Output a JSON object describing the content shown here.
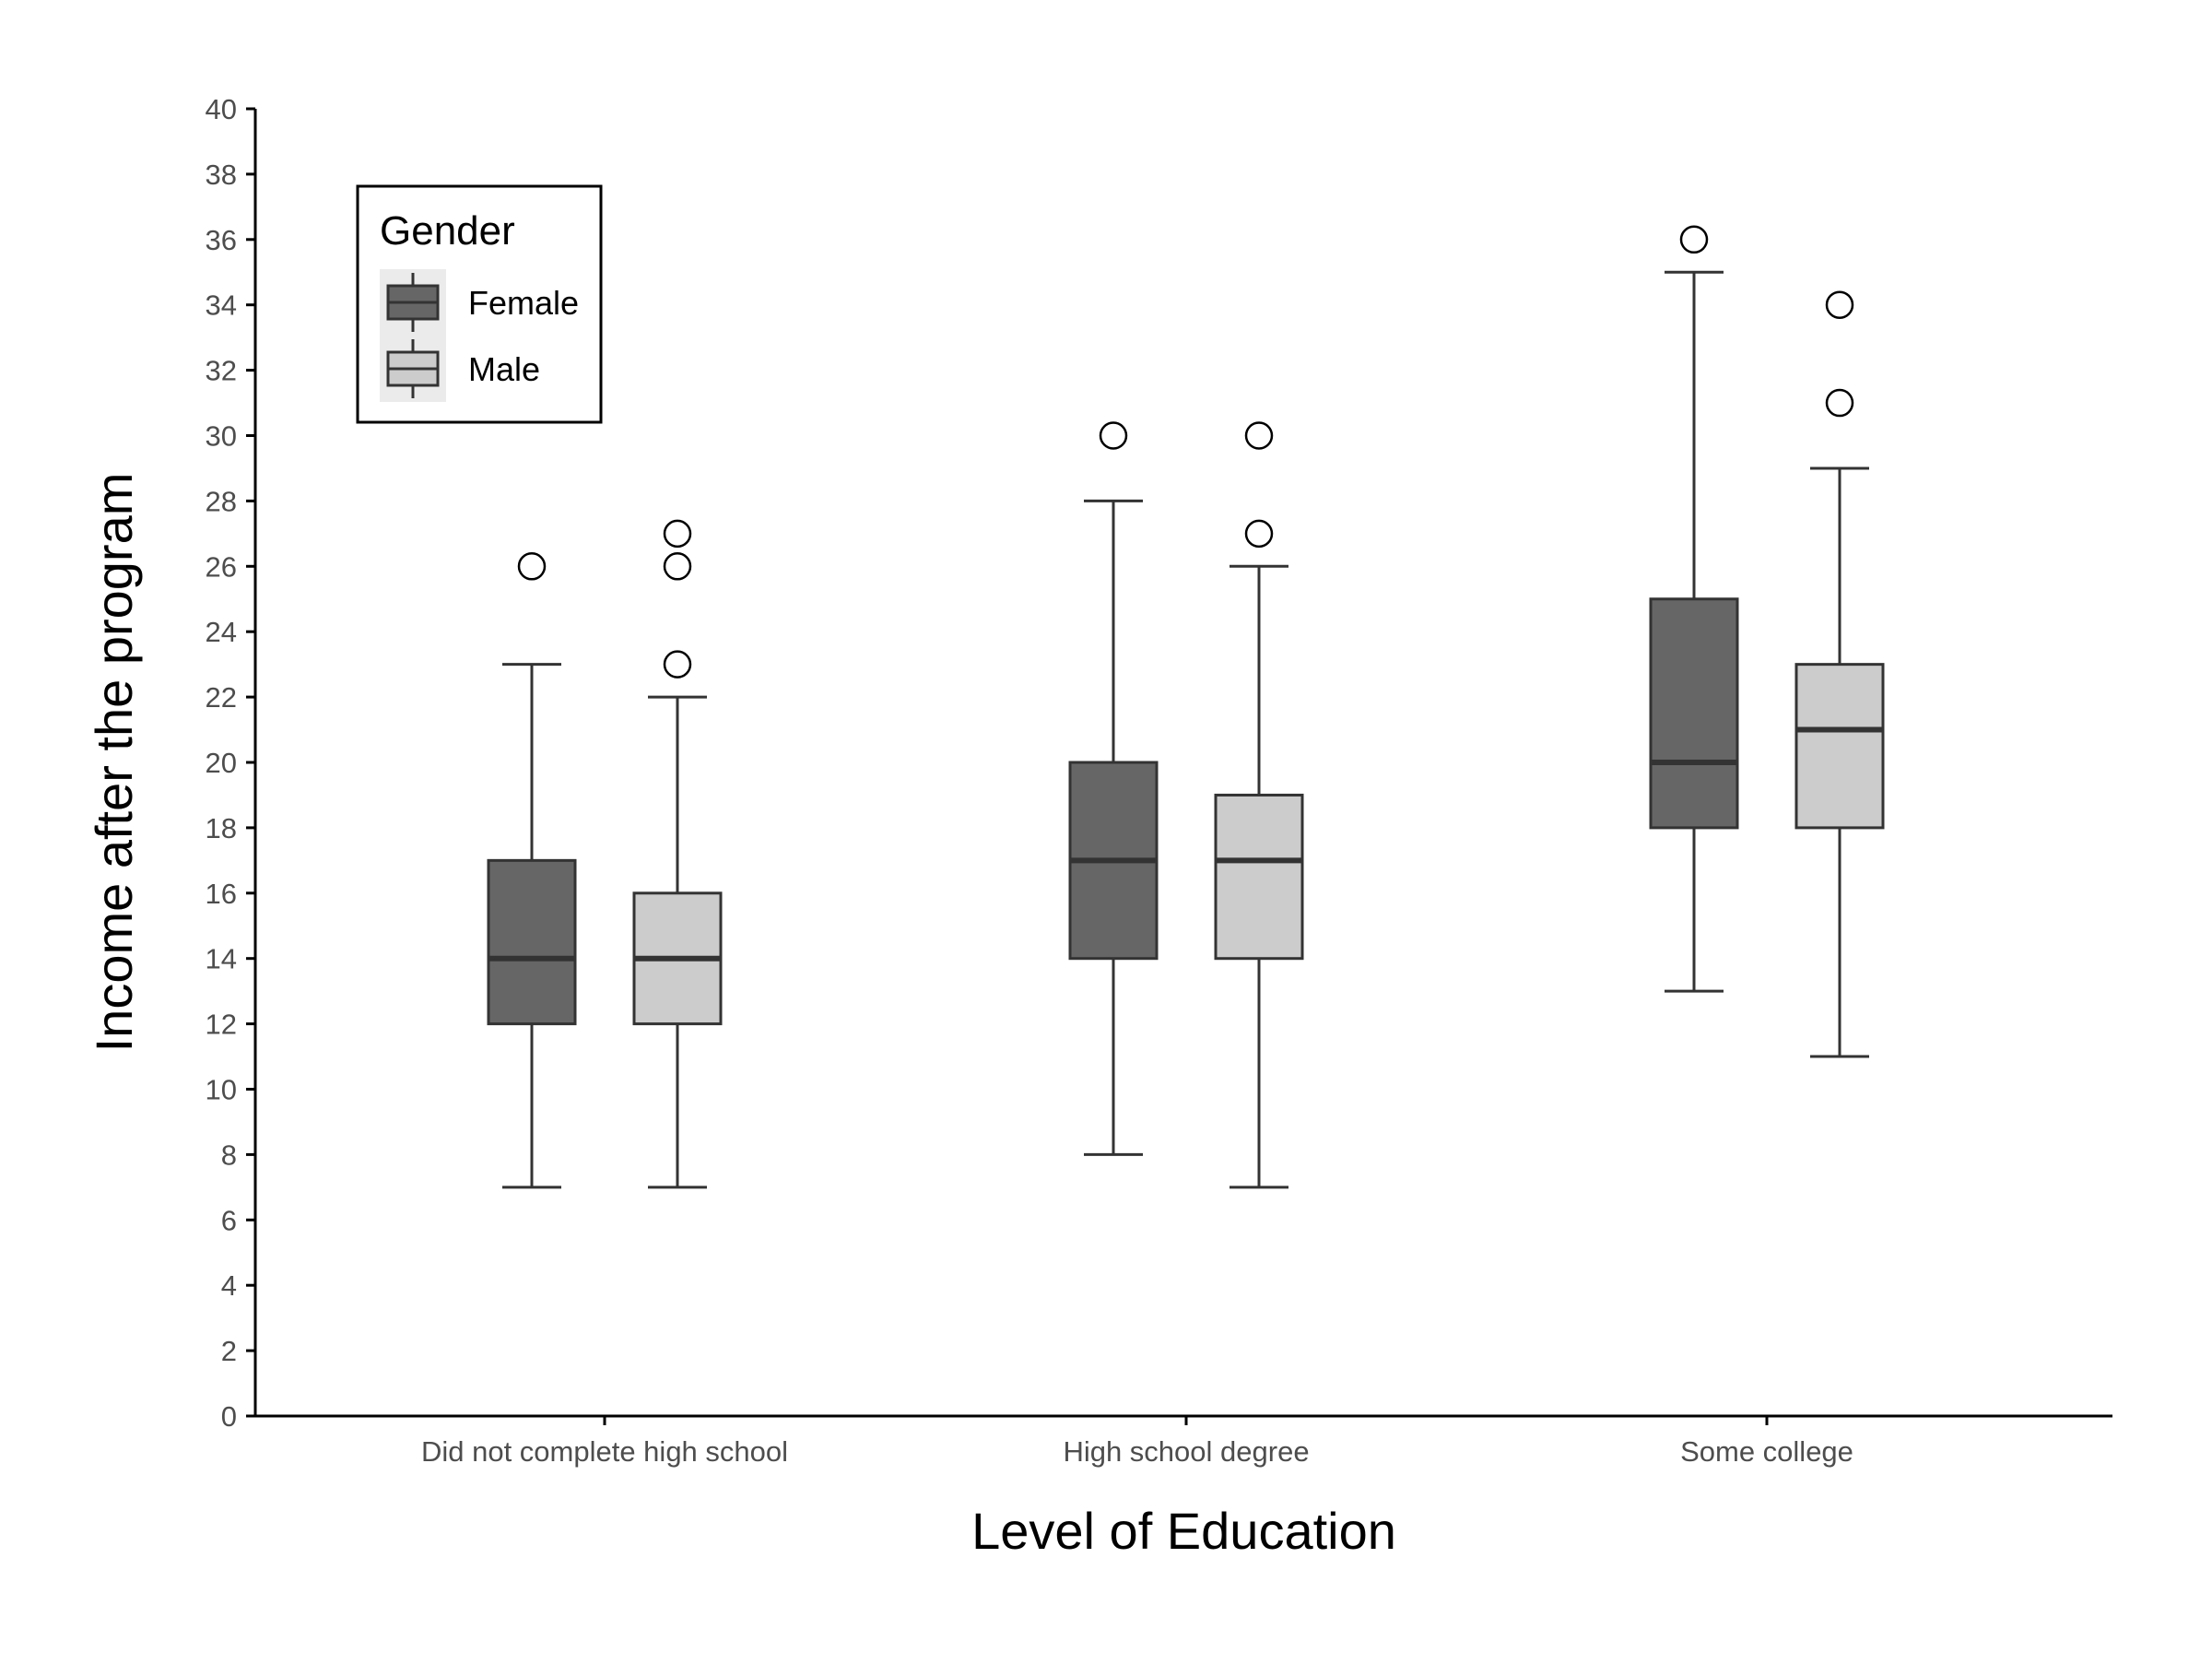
{
  "chart_data": {
    "type": "boxplot",
    "xlabel": "Level of Education",
    "ylabel": "Income after the program",
    "ylim": [
      0,
      40
    ],
    "yticks": [
      0,
      2,
      4,
      6,
      8,
      10,
      12,
      14,
      16,
      18,
      20,
      22,
      24,
      26,
      28,
      30,
      32,
      34,
      36,
      38,
      40
    ],
    "grid": false,
    "legend": {
      "title": "Gender",
      "position": "top-left",
      "entries": [
        "Female",
        "Male"
      ]
    },
    "categories": [
      "Did not complete high school",
      "High school degree",
      "Some college"
    ],
    "series": [
      {
        "name": "Female",
        "color": "#666666",
        "boxes": [
          {
            "whisker_low": 7,
            "q1": 12,
            "median": 14,
            "q3": 17,
            "whisker_high": 23,
            "outliers": [
              26
            ]
          },
          {
            "whisker_low": 8,
            "q1": 14,
            "median": 17,
            "q3": 20,
            "whisker_high": 28,
            "outliers": [
              30
            ]
          },
          {
            "whisker_low": 13,
            "q1": 18,
            "median": 20,
            "q3": 25,
            "whisker_high": 35,
            "outliers": [
              36
            ]
          }
        ]
      },
      {
        "name": "Male",
        "color": "#cccccc",
        "boxes": [
          {
            "whisker_low": 7,
            "q1": 12,
            "median": 14,
            "q3": 16,
            "whisker_high": 22,
            "outliers": [
              23,
              26,
              27
            ]
          },
          {
            "whisker_low": 7,
            "q1": 14,
            "median": 17,
            "q3": 19,
            "whisker_high": 26,
            "outliers": [
              27,
              30
            ]
          },
          {
            "whisker_low": 11,
            "q1": 18,
            "median": 21,
            "q3": 23,
            "whisker_high": 29,
            "outliers": [
              31,
              34
            ]
          }
        ]
      }
    ]
  }
}
